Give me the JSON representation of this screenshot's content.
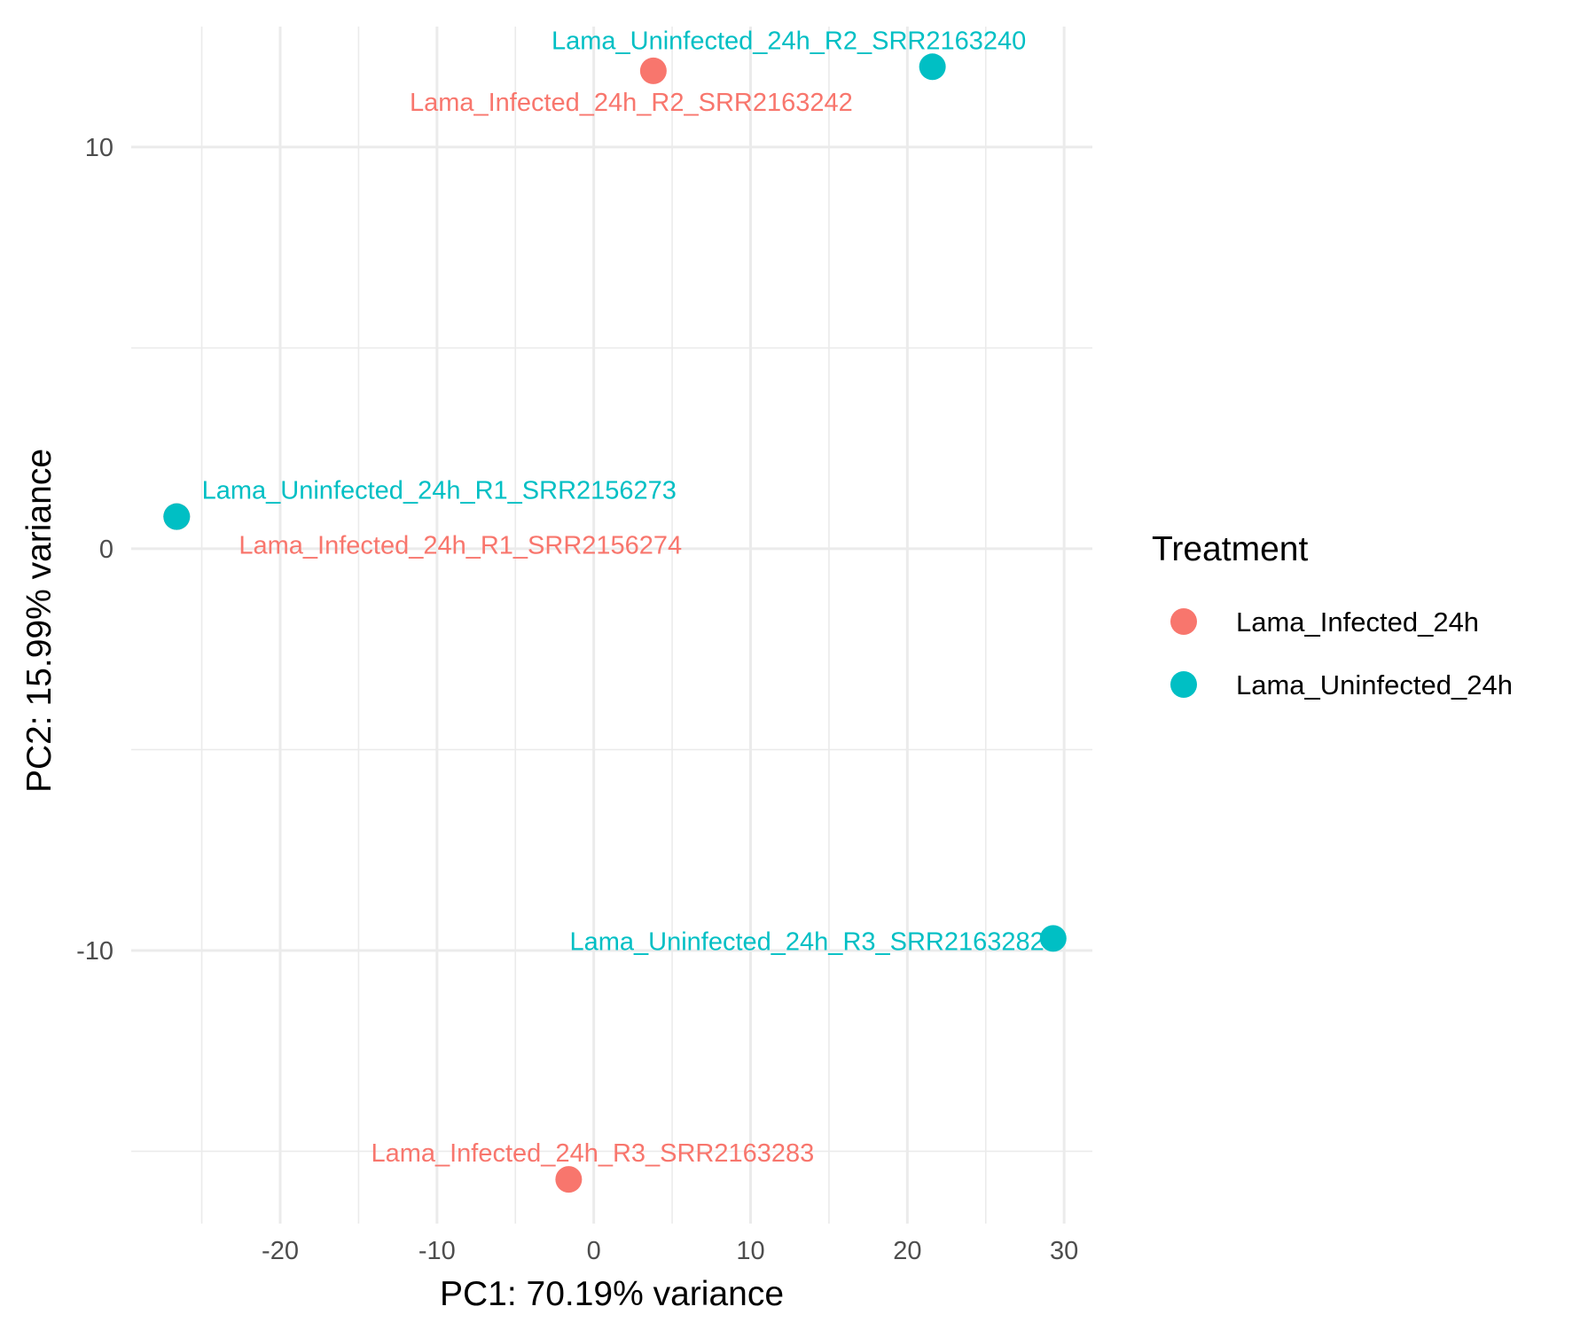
{
  "chart_data": {
    "type": "scatter",
    "title": "",
    "xlabel": "PC1: 70.19% variance",
    "ylabel": "PC2: 15.99% variance",
    "xlim": [
      -29.5,
      31.8
    ],
    "ylim": [
      -16.8,
      13.0
    ],
    "x_ticks": [
      -20,
      -10,
      0,
      10,
      20,
      30
    ],
    "y_ticks": [
      -10,
      0,
      10
    ],
    "x_tick_labels": [
      "-20",
      "-10",
      "0",
      "10",
      "20",
      "30"
    ],
    "y_tick_labels": [
      "-10",
      "0",
      "10"
    ],
    "x_minor_ticks": [
      -25,
      -15,
      -5,
      5,
      15,
      25
    ],
    "y_minor_ticks": [
      -15,
      -5,
      5
    ],
    "grid": true,
    "legend": {
      "title": "Treatment",
      "position": "right",
      "entries": [
        {
          "name": "Lama_Infected_24h",
          "color": "#F8766D"
        },
        {
          "name": "Lama_Uninfected_24h",
          "color": "#00BFC4"
        }
      ]
    },
    "series": [
      {
        "name": "Lama_Infected_24h",
        "color": "#F8766D",
        "points": [
          {
            "label": "Lama_Infected_24h_R2_SRR2163242",
            "x": 3.8,
            "y": 11.9
          },
          {
            "label": "Lama_Infected_24h_R1_SRR2156274",
            "x": -26.6,
            "y": 0.8
          },
          {
            "label": "Lama_Infected_24h_R3_SRR2163283",
            "x": -1.6,
            "y": -15.7
          }
        ]
      },
      {
        "name": "Lama_Uninfected_24h",
        "color": "#00BFC4",
        "points": [
          {
            "label": "Lama_Uninfected_24h_R2_SRR2163240",
            "x": 21.6,
            "y": 12.0
          },
          {
            "label": "Lama_Uninfected_24h_R1_SRR2156273",
            "x": -26.6,
            "y": 0.8
          },
          {
            "label": "Lama_Uninfected_24h_R3_SRR2163282",
            "x": 29.3,
            "y": -9.7
          }
        ]
      }
    ]
  }
}
